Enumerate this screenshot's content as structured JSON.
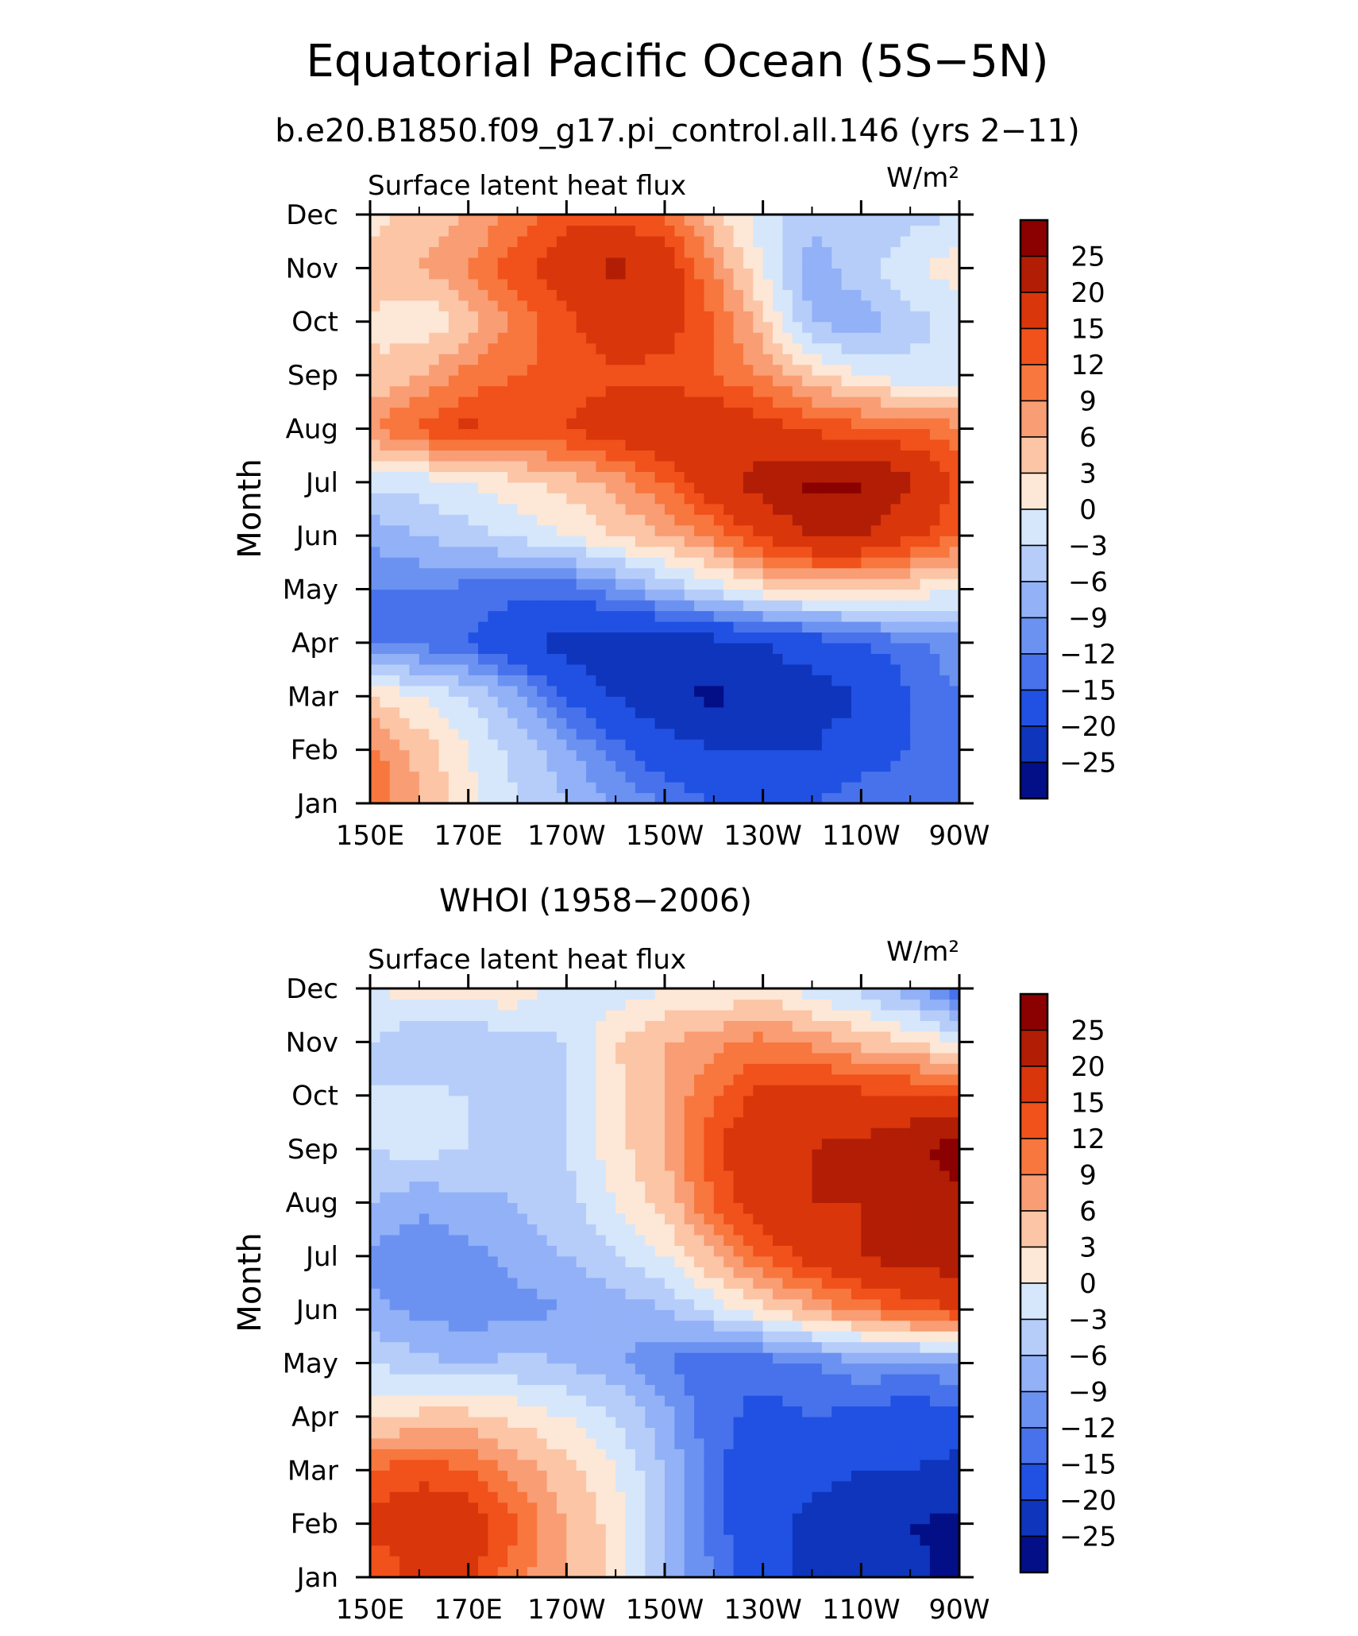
{
  "figure": {
    "title": "Equatorial Pacific Ocean (5S−5N)",
    "subtitle": "b.e20.B1850.f09_g17.pi_control.all.146 (yrs 2−11)",
    "panel2_title": "WHOI (1958−2006)"
  },
  "colorbar": {
    "labels": [
      "25",
      "20",
      "15",
      "12",
      "9",
      "6",
      "3",
      "0",
      "−3",
      "−6",
      "−9",
      "−12",
      "−15",
      "−20",
      "−25"
    ],
    "levels": [
      25,
      20,
      15,
      12,
      9,
      6,
      3,
      0,
      -3,
      -6,
      -9,
      -12,
      -15,
      -20,
      -25
    ],
    "colors": [
      "#8b0000",
      "#b21d05",
      "#d9360b",
      "#f1511a",
      "#f7773e",
      "#f99d74",
      "#fbc5a6",
      "#fde7d6",
      "#d6e7fb",
      "#b6cdfa",
      "#92b1f7",
      "#6c92f1",
      "#4872eb",
      "#2151e3",
      "#0e35bb",
      "#030f87"
    ]
  },
  "chart_data": [
    {
      "type": "heatmap",
      "panel_title": "Surface latent heat flux",
      "units": "W/m²",
      "ylabel": "Month",
      "x_ticks": [
        "150E",
        "170E",
        "170W",
        "150W",
        "130W",
        "110W",
        "90W"
      ],
      "y_ticks": [
        "Jan",
        "Feb",
        "Mar",
        "Apr",
        "May",
        "Jun",
        "Jul",
        "Aug",
        "Sep",
        "Oct",
        "Nov",
        "Dec"
      ],
      "x_range": [
        150,
        270
      ],
      "y_range": [
        1,
        12
      ],
      "grid_lon": [
        150,
        160,
        170,
        180,
        190,
        200,
        210,
        220,
        230,
        240,
        250,
        260,
        270
      ],
      "values": [
        [
          12,
          6,
          1,
          -3,
          -6,
          -9,
          -12,
          -15,
          -15,
          -15,
          -12,
          -12,
          -12
        ],
        [
          10,
          5,
          0,
          -4,
          -8,
          -14,
          -18,
          -20,
          -20,
          -20,
          -18,
          -15,
          -12
        ],
        [
          3,
          0,
          -3,
          -8,
          -16,
          -20,
          -24,
          -26,
          -22,
          -22,
          -20,
          -15,
          -12
        ],
        [
          -12,
          -13,
          -15,
          -19,
          -22,
          -24,
          -23,
          -22,
          -20,
          -18,
          -15,
          -13,
          -10
        ],
        [
          -12,
          -12,
          -13,
          -14,
          -14,
          -10,
          -6,
          -2,
          2,
          4,
          4,
          2,
          0
        ],
        [
          -8,
          -6,
          -4,
          -2,
          0,
          3,
          6,
          10,
          16,
          20,
          20,
          16,
          12
        ],
        [
          -2,
          -2,
          0,
          2,
          4,
          7,
          12,
          18,
          22,
          26,
          26,
          21,
          14
        ],
        [
          9,
          13,
          16,
          14,
          15,
          18,
          19,
          19,
          17,
          14,
          13,
          12,
          10
        ],
        [
          3,
          6,
          10,
          12,
          13,
          14,
          14,
          12,
          9,
          4,
          0,
          -2,
          -3
        ],
        [
          3,
          0,
          4,
          10,
          14,
          18,
          17,
          12,
          4,
          -6,
          -8,
          -4,
          -2
        ],
        [
          4,
          6,
          9,
          14,
          18,
          21,
          18,
          9,
          0,
          -8,
          -4,
          -1,
          2
        ],
        [
          2,
          4,
          6,
          10,
          14,
          14,
          12,
          4,
          -2,
          -5,
          -5,
          -4,
          -3
        ]
      ]
    },
    {
      "type": "heatmap",
      "panel_title": "Surface latent heat flux",
      "units": "W/m²",
      "ylabel": "Month",
      "x_ticks": [
        "150E",
        "170E",
        "170W",
        "150W",
        "130W",
        "110W",
        "90W"
      ],
      "y_ticks": [
        "Jan",
        "Feb",
        "Mar",
        "Apr",
        "May",
        "Jun",
        "Jul",
        "Aug",
        "Sep",
        "Oct",
        "Nov",
        "Dec"
      ],
      "x_range": [
        150,
        270
      ],
      "y_range": [
        1,
        12
      ],
      "grid_lon": [
        150,
        160,
        170,
        180,
        190,
        200,
        210,
        220,
        230,
        240,
        250,
        260,
        270
      ],
      "values": [
        [
          12,
          16,
          16,
          10,
          6,
          2,
          -6,
          -12,
          -18,
          -22,
          -24,
          -24,
          -26
        ],
        [
          16,
          18,
          18,
          12,
          6,
          2,
          -6,
          -14,
          -18,
          -22,
          -24,
          -25,
          -26
        ],
        [
          12,
          14,
          12,
          8,
          4,
          0,
          -6,
          -14,
          -18,
          -18,
          -20,
          -20,
          -22
        ],
        [
          2,
          4,
          4,
          2,
          0,
          -3,
          -8,
          -14,
          -16,
          -15,
          -16,
          -18,
          -16
        ],
        [
          -3,
          -5,
          -6,
          -5,
          -6,
          -8,
          -12,
          -15,
          -14,
          -12,
          -10,
          -10,
          -10
        ],
        [
          -8,
          -10,
          -11,
          -10,
          -9,
          -8,
          -6,
          -2,
          2,
          6,
          10,
          13,
          15
        ],
        [
          -10,
          -12,
          -10,
          -8,
          -6,
          -3,
          0,
          6,
          12,
          17,
          20,
          22,
          23
        ],
        [
          -6,
          -8,
          -7,
          -6,
          -4,
          0,
          4,
          12,
          18,
          20,
          20,
          22,
          24
        ],
        [
          -3,
          -2,
          -3,
          -4,
          -3,
          2,
          6,
          14,
          20,
          20,
          21,
          24,
          27
        ],
        [
          -3,
          -2,
          -3,
          -4,
          -3,
          2,
          6,
          12,
          16,
          18,
          16,
          16,
          15
        ],
        [
          -3,
          -6,
          -6,
          -4,
          -3,
          3,
          6,
          8,
          10,
          8,
          5,
          3,
          0
        ],
        [
          0,
          1,
          2,
          2,
          -2,
          -2,
          0,
          0,
          2,
          -2,
          -4,
          -8,
          -15
        ]
      ]
    }
  ]
}
